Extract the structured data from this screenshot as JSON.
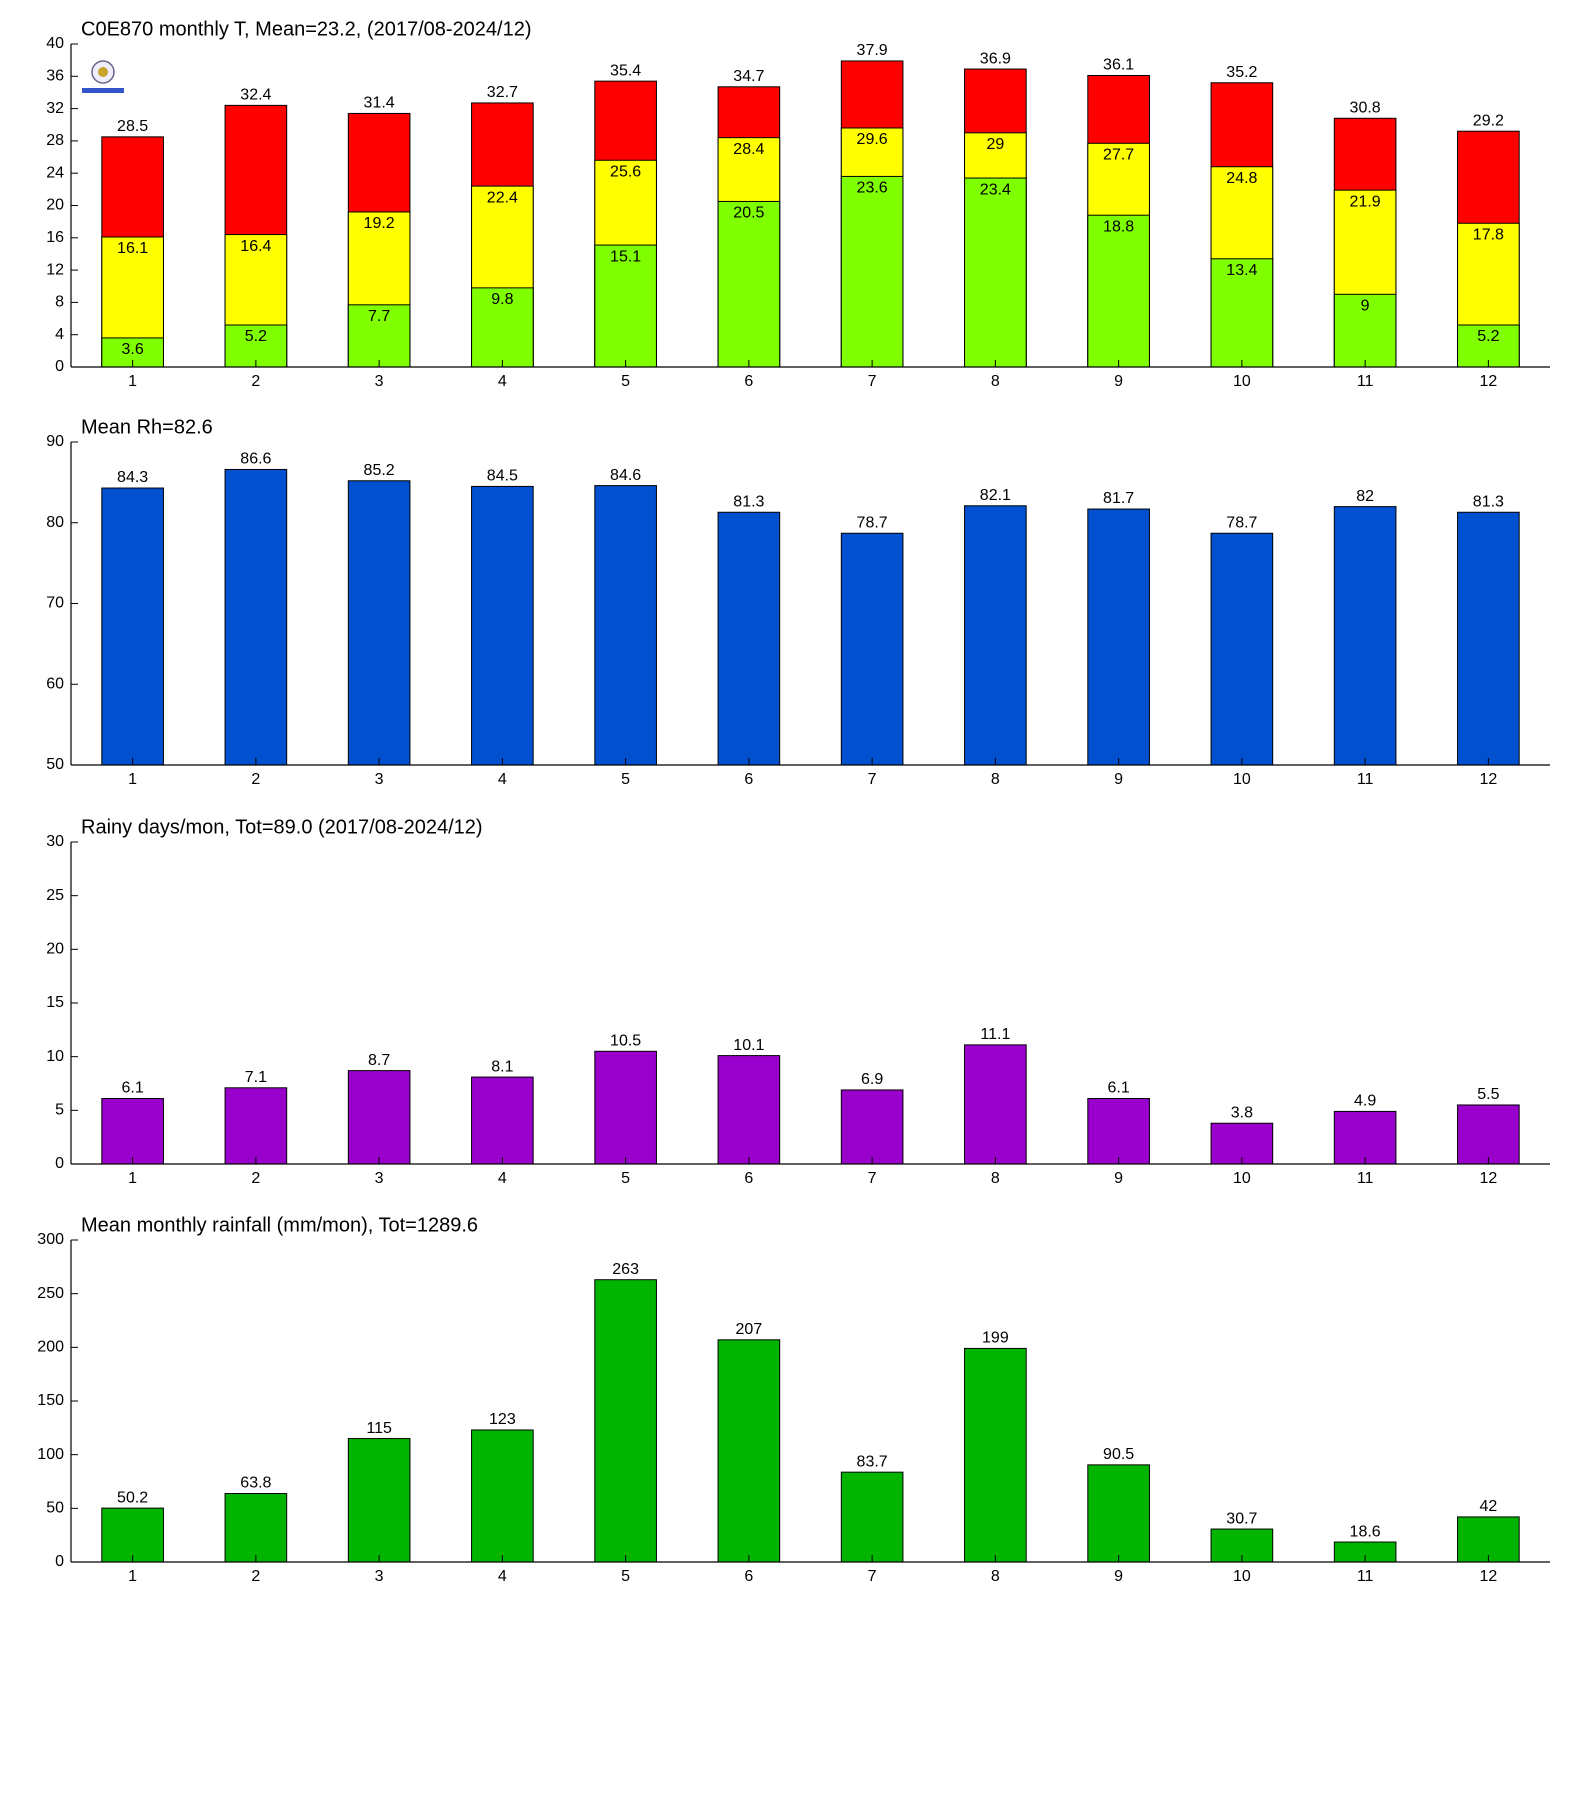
{
  "chart_data": [
    {
      "type": "overlay_bar",
      "title": "C0E870 monthly T, Mean=23.2, (2017/08-2024/12)",
      "categories": [
        "1",
        "2",
        "3",
        "4",
        "5",
        "6",
        "7",
        "8",
        "9",
        "10",
        "11",
        "12"
      ],
      "series": [
        {
          "color": "#ff0000",
          "values": [
            28.5,
            32.4,
            31.4,
            32.7,
            35.4,
            34.7,
            37.9,
            36.9,
            36.1,
            35.2,
            30.8,
            29.2
          ]
        },
        {
          "color": "#ffff00",
          "values": [
            16.1,
            16.4,
            19.2,
            22.4,
            25.6,
            28.4,
            29.6,
            29,
            27.7,
            24.8,
            21.9,
            17.8
          ]
        },
        {
          "color": "#80ff00",
          "values": [
            3.6,
            5.2,
            7.7,
            9.8,
            15.1,
            20.5,
            23.6,
            23.4,
            18.8,
            13.4,
            9,
            5.2
          ]
        }
      ],
      "ylim": [
        0,
        40
      ],
      "yticks": [
        0,
        4,
        8,
        12,
        16,
        20,
        24,
        28,
        32,
        36,
        40
      ]
    },
    {
      "type": "bar",
      "title": "Mean Rh=82.6",
      "categories": [
        "1",
        "2",
        "3",
        "4",
        "5",
        "6",
        "7",
        "8",
        "9",
        "10",
        "11",
        "12"
      ],
      "series": [
        {
          "color": "#0050d0",
          "values": [
            84.3,
            86.6,
            85.2,
            84.5,
            84.6,
            81.3,
            78.7,
            82.1,
            81.7,
            78.7,
            82,
            81.3
          ]
        }
      ],
      "ylim": [
        50,
        90
      ],
      "yticks": [
        50,
        60,
        70,
        80,
        90
      ]
    },
    {
      "type": "bar",
      "title": "Rainy days/mon, Tot=89.0 (2017/08-2024/12)",
      "categories": [
        "1",
        "2",
        "3",
        "4",
        "5",
        "6",
        "7",
        "8",
        "9",
        "10",
        "11",
        "12"
      ],
      "series": [
        {
          "color": "#9900cc",
          "values": [
            6.1,
            7.1,
            8.7,
            8.1,
            10.5,
            10.1,
            6.9,
            11.1,
            6.1,
            3.8,
            4.9,
            5.5
          ]
        }
      ],
      "ylim": [
        0,
        30
      ],
      "yticks": [
        0,
        5,
        10,
        15,
        20,
        25,
        30
      ]
    },
    {
      "type": "bar",
      "title": "Mean monthly rainfall (mm/mon), Tot=1289.6",
      "categories": [
        "1",
        "2",
        "3",
        "4",
        "5",
        "6",
        "7",
        "8",
        "9",
        "10",
        "11",
        "12"
      ],
      "series": [
        {
          "color": "#00b400",
          "values": [
            50.2,
            63.8,
            115,
            123,
            263,
            207,
            83.7,
            199,
            90.5,
            30.7,
            18.6,
            42
          ]
        }
      ],
      "ylim": [
        0,
        300
      ],
      "yticks": [
        0,
        50,
        100,
        150,
        200,
        250,
        300
      ]
    }
  ]
}
